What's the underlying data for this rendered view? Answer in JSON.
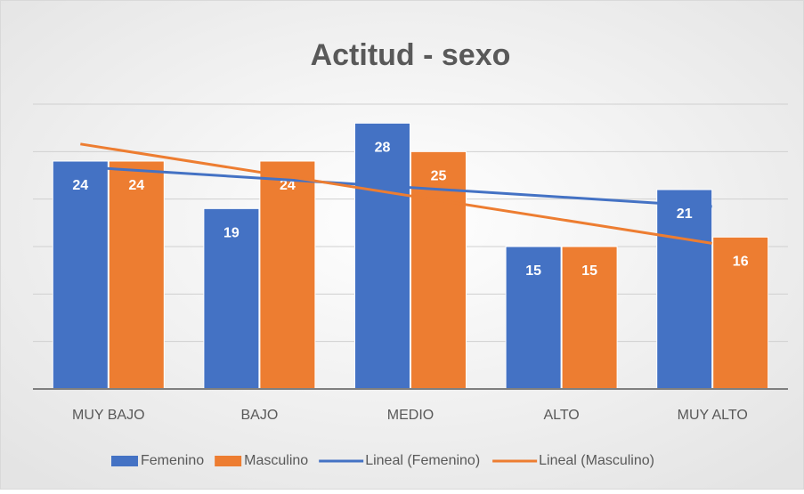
{
  "chart_data": {
    "type": "bar",
    "title": "Actitud - sexo",
    "categories": [
      "MUY BAJO",
      "BAJO",
      "MEDIO",
      "ALTO",
      "MUY ALTO"
    ],
    "series": [
      {
        "name": "Femenino",
        "color": "#4472c4",
        "values": [
          24,
          19,
          28,
          15,
          21
        ],
        "trendline": "Lineal (Femenino)"
      },
      {
        "name": "Masculino",
        "color": "#ed7d31",
        "values": [
          24,
          24,
          25,
          15,
          16
        ],
        "trendline": "Lineal (Masculino)"
      }
    ],
    "ylim": [
      0,
      30
    ],
    "yticks": [
      0,
      5,
      10,
      15,
      20,
      25,
      30
    ],
    "grid": true,
    "legend": "bottom"
  }
}
